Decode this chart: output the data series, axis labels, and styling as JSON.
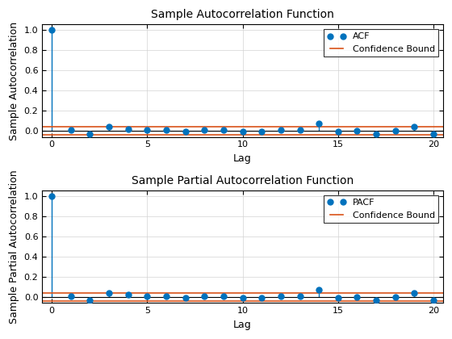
{
  "acf_values": [
    1.0,
    0.01,
    -0.03,
    0.04,
    0.02,
    0.01,
    0.01,
    -0.01,
    0.01,
    0.01,
    -0.01,
    -0.01,
    0.01,
    0.01,
    0.07,
    -0.01,
    0.0,
    -0.03,
    0.0,
    0.04,
    -0.03
  ],
  "pacf_values": [
    1.0,
    0.01,
    -0.03,
    0.04,
    0.02,
    0.01,
    0.01,
    -0.01,
    0.01,
    0.01,
    -0.01,
    -0.01,
    0.01,
    0.01,
    0.07,
    -0.01,
    0.0,
    -0.03,
    0.0,
    0.04,
    -0.03
  ],
  "lags": [
    0,
    1,
    2,
    3,
    4,
    5,
    6,
    7,
    8,
    9,
    10,
    11,
    12,
    13,
    14,
    15,
    16,
    17,
    18,
    19,
    20
  ],
  "confidence_bound": 0.04,
  "acf_title": "Sample Autocorrelation Function",
  "pacf_title": "Sample Partial Autocorrelation Function",
  "xlabel": "Lag",
  "acf_ylabel": "Sample Autocorrelation",
  "pacf_ylabel": "Sample Partial Autocorrelation",
  "stem_color": "#0072bd",
  "marker_color": "#0072bd",
  "confidence_color": "#d95319",
  "baseline_color": "#000000",
  "ylim": [
    -0.06,
    1.05
  ],
  "yticks": [
    0.0,
    0.2,
    0.4,
    0.6,
    0.8,
    1.0
  ],
  "xlim": [
    -0.5,
    20.5
  ],
  "xticks": [
    0,
    5,
    10,
    15,
    20
  ],
  "legend_acf": "ACF",
  "legend_pacf": "PACF",
  "legend_conf": "Confidence Bound",
  "title_fontsize": 10,
  "label_fontsize": 9,
  "tick_fontsize": 8,
  "figsize": [
    5.6,
    4.2
  ],
  "dpi": 100
}
